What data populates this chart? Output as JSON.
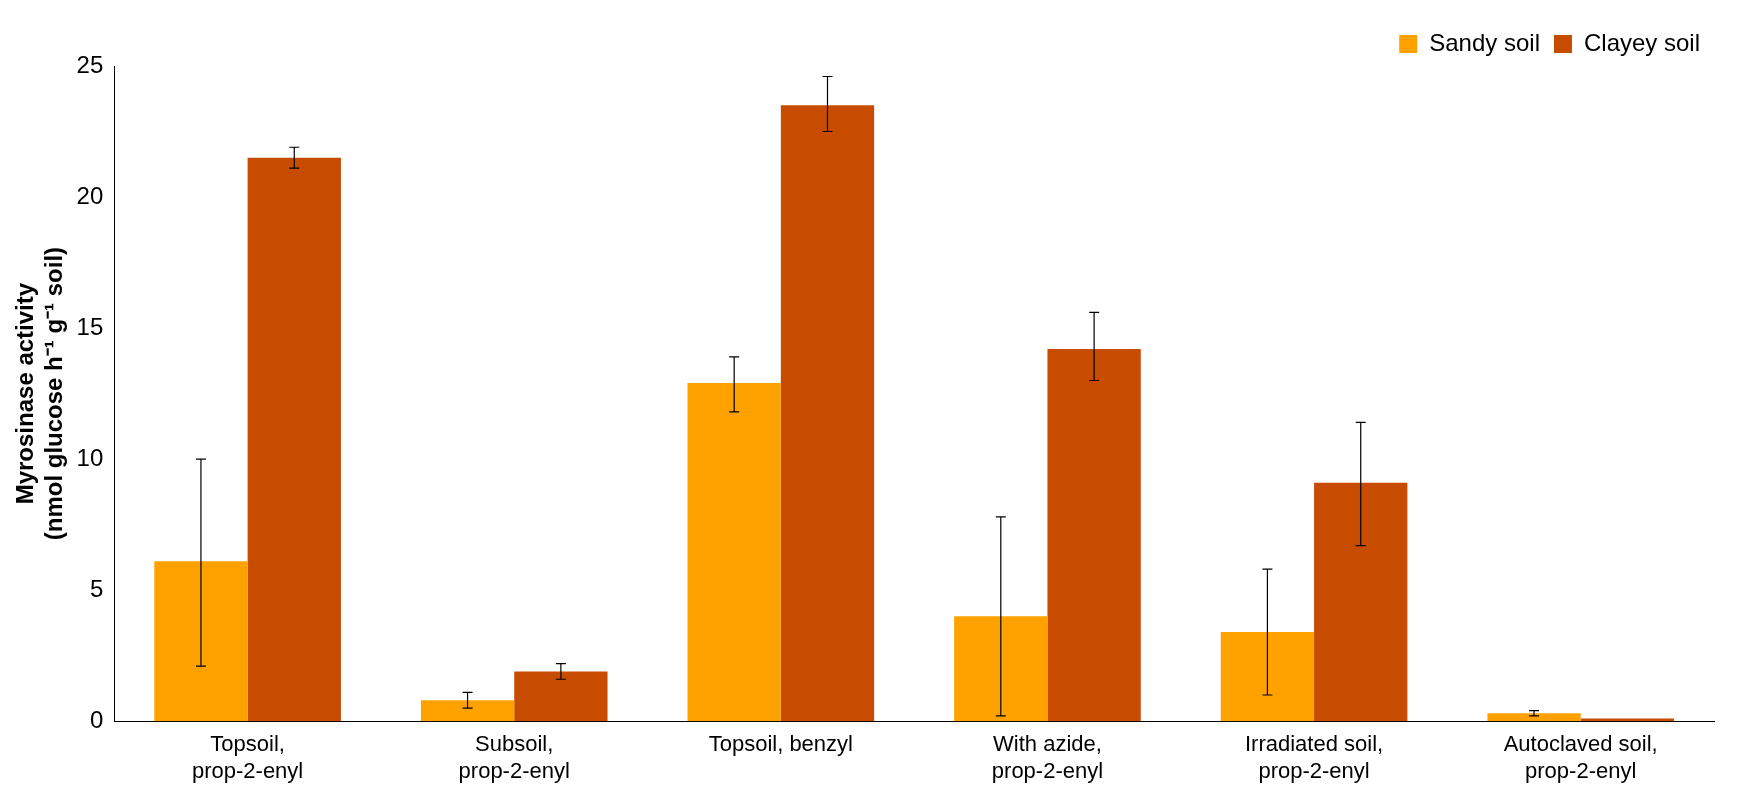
{
  "chart_data": {
    "type": "bar",
    "ylabel": "Myrosinase activity\n(nmol glucose h⁻¹ g⁻¹ soil)",
    "categories": [
      "Topsoil, prop-2-enyl",
      "Subsoil, prop-2-enyl",
      "Topsoil, benzyl",
      "With azide, prop-2-enyl",
      "Irradiated soil, prop-2-enyl",
      "Autoclaved soil, prop-2-enyl"
    ],
    "series": [
      {
        "name": "Sandy soil",
        "color": "#ffa200",
        "values": [
          6.1,
          0.8,
          12.9,
          4.0,
          3.4,
          0.3
        ],
        "errors": [
          [
            2.1,
            10.0
          ],
          [
            0.5,
            1.1
          ],
          [
            11.8,
            13.9
          ],
          [
            0.2,
            7.8
          ],
          [
            1.0,
            5.8
          ],
          [
            0.2,
            0.4
          ]
        ]
      },
      {
        "name": "Clayey soil",
        "color": "#c84c00",
        "values": [
          21.5,
          1.9,
          23.5,
          14.2,
          9.1,
          0.1
        ],
        "errors": [
          [
            21.1,
            21.9
          ],
          [
            1.6,
            2.2
          ],
          [
            22.5,
            24.6
          ],
          [
            13.0,
            15.6
          ],
          [
            6.7,
            11.4
          ],
          null
        ]
      }
    ],
    "ylim": [
      0,
      25
    ],
    "yticks": [
      0,
      5,
      10,
      15,
      20,
      25
    ],
    "grid": false,
    "legend": "top right"
  }
}
